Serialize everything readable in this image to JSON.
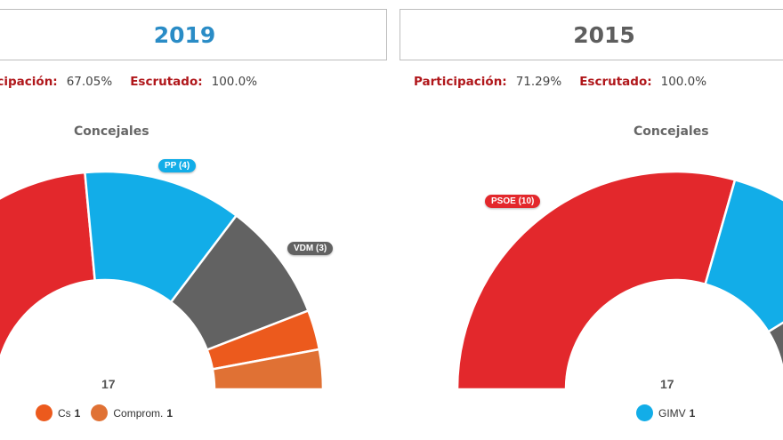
{
  "colors": {
    "psoe": "#e3282c",
    "pp": "#12ade8",
    "vdm": "#626262",
    "cs": "#ec5a1d",
    "comprom": "#e07134",
    "gimv": "#12ade8",
    "label_red": "#b0171b"
  },
  "left": {
    "year": "2019",
    "year_color": "#2a8cc6",
    "participacion_label": "Participación:",
    "participacion_value": "67.05%",
    "escrutado_label": "Escrutado:",
    "escrutado_value": "100.0%",
    "chart_title": "Concejales",
    "total": "17",
    "tags": [
      {
        "text": "PP (4)",
        "color": "#12ade8"
      },
      {
        "text": "VDM (3)",
        "color": "#626262"
      }
    ],
    "legend": [
      {
        "label": "Cs",
        "value": "1",
        "color": "#ec5a1d"
      },
      {
        "label": "Comprom.",
        "value": "1",
        "color": "#e07134"
      }
    ]
  },
  "right": {
    "year": "2015",
    "year_color": "#5e5e5e",
    "participacion_label": "Participación:",
    "participacion_value": "71.29%",
    "escrutado_label": "Escrutado:",
    "escrutado_value": "100.0%",
    "chart_title": "Concejales",
    "total": "17",
    "tags": [
      {
        "text": "PSOE (10)",
        "color": "#e3282c"
      }
    ],
    "legend": [
      {
        "label": "GIMV",
        "value": "1",
        "color": "#12ade8"
      }
    ]
  },
  "chart_data": [
    {
      "type": "pie",
      "subtype": "half-donut",
      "title": "Concejales",
      "year": "2019",
      "total": 17,
      "series": [
        {
          "name": "PSOE",
          "value": 8,
          "color": "#e3282c"
        },
        {
          "name": "PP",
          "value": 4,
          "color": "#12ade8"
        },
        {
          "name": "VDM",
          "value": 3,
          "color": "#626262"
        },
        {
          "name": "Cs",
          "value": 1,
          "color": "#ec5a1d"
        },
        {
          "name": "Comprom.",
          "value": 1,
          "color": "#e07134"
        }
      ]
    },
    {
      "type": "pie",
      "subtype": "half-donut",
      "title": "Concejales",
      "year": "2015",
      "total": 17,
      "series": [
        {
          "name": "PSOE",
          "value": 10,
          "color": "#e3282c"
        },
        {
          "name": "PP",
          "value": 4,
          "color": "#12ade8"
        },
        {
          "name": "VDM",
          "value": 2,
          "color": "#626262"
        },
        {
          "name": "GIMV",
          "value": 1,
          "color": "#12ade8"
        }
      ]
    }
  ]
}
